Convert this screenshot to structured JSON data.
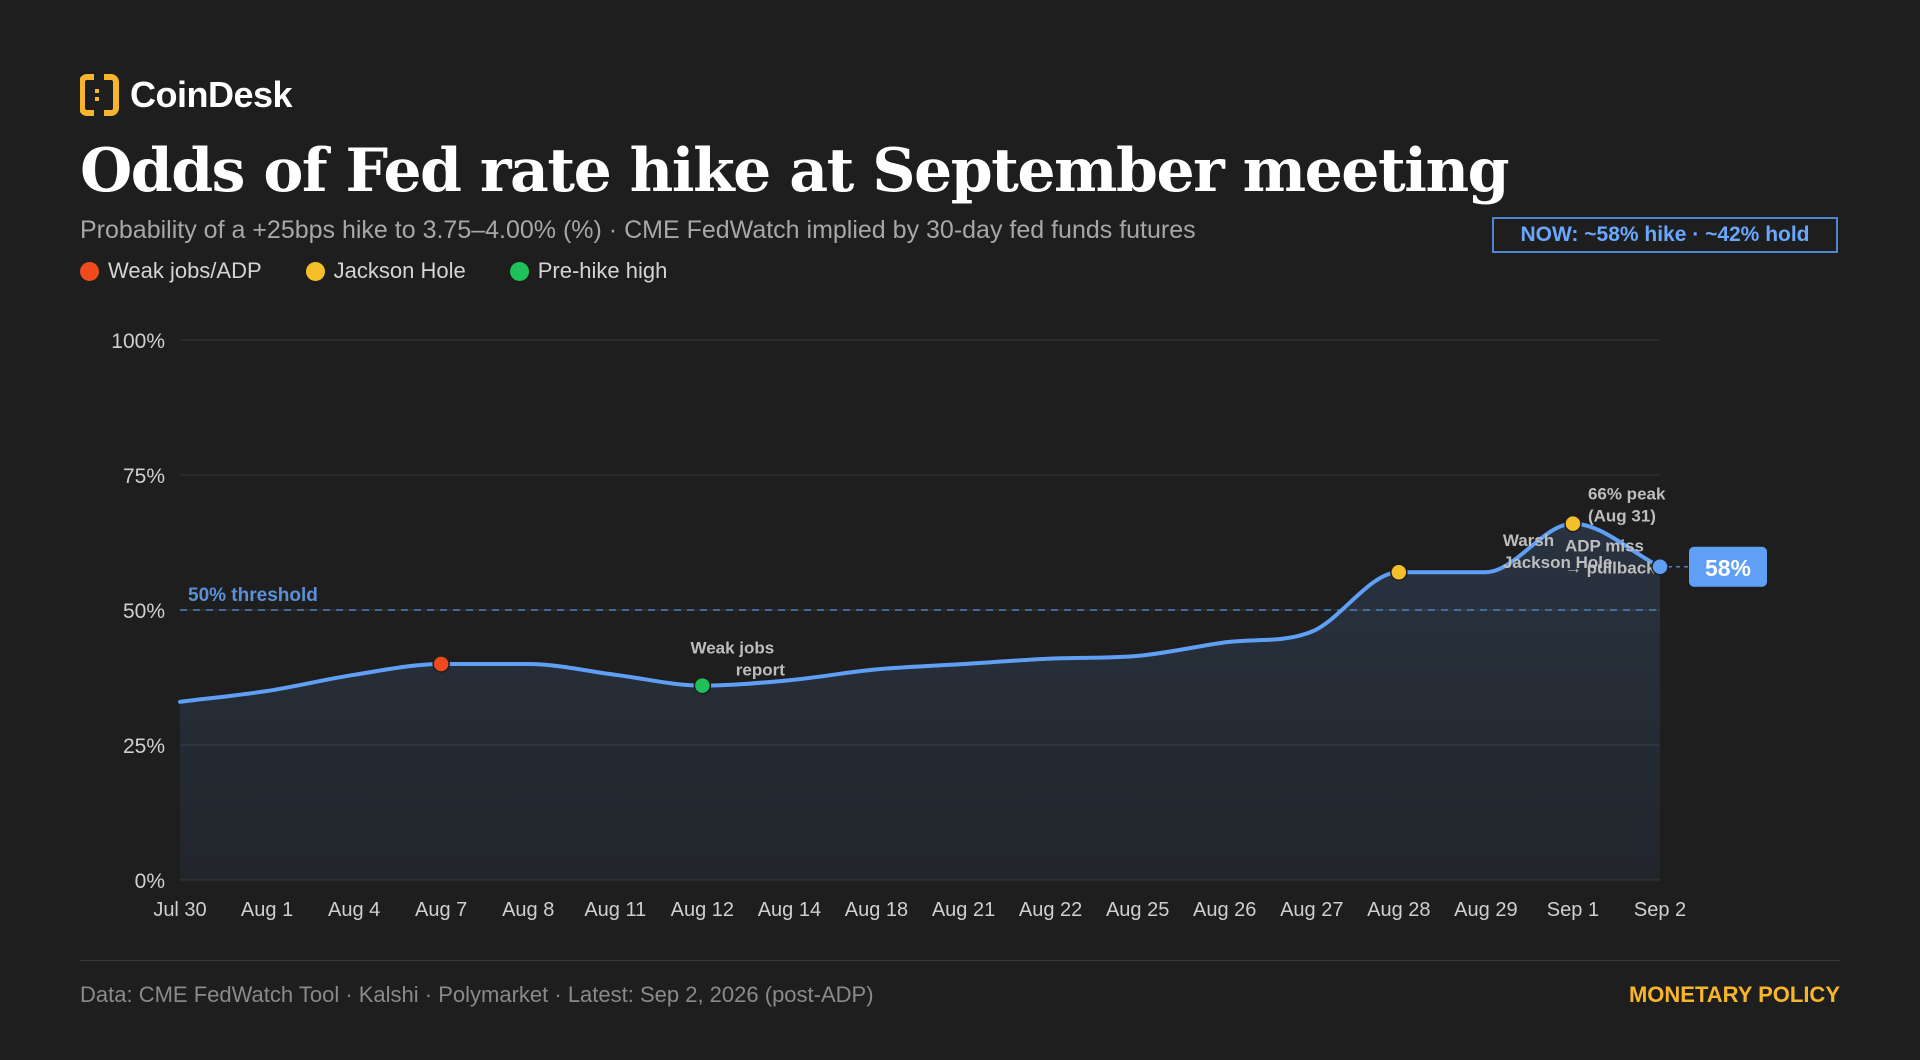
{
  "brand": {
    "name": "CoinDesk",
    "color": "#f7b52b"
  },
  "header": {
    "title": "Odds of Fed rate hike at September meeting",
    "subtitle": "Probability of a +25bps hike to 3.75–4.00% (%) · CME FedWatch implied by 30-day fed funds futures",
    "now_badge": "NOW: ~58% hike · ~42% hold"
  },
  "legend": [
    {
      "label": "Weak jobs/ADP",
      "color": "#f04a1d"
    },
    {
      "label": "Jackson Hole",
      "color": "#f5bf2a"
    },
    {
      "label": "Pre-hike high",
      "color": "#1fc25a"
    }
  ],
  "chart_data": {
    "type": "line",
    "x": [
      "Jul 30",
      "Aug 1",
      "Aug 4",
      "Aug 7",
      "Aug 8",
      "Aug 11",
      "Aug 12",
      "Aug 14",
      "Aug 18",
      "Aug 21",
      "Aug 22",
      "Aug 25",
      "Aug 26",
      "Aug 27",
      "Aug 28",
      "Aug 29",
      "Sep 1",
      "Sep 2"
    ],
    "series": [
      {
        "values": [
          33,
          35,
          38,
          40,
          40,
          38,
          36,
          37,
          39,
          40,
          41,
          41.5,
          44,
          46,
          57,
          57,
          66,
          58
        ],
        "color": "#5f9ff5"
      }
    ],
    "yticks": [
      0,
      25,
      50,
      75,
      100
    ],
    "ytick_labels": [
      "0%",
      "25%",
      "50%",
      "75%",
      "100%"
    ],
    "ylim": [
      0,
      100
    ],
    "threshold": {
      "value": 50,
      "label": "50% threshold"
    },
    "markers": [
      {
        "index": 3,
        "color": "#f04a1d"
      },
      {
        "index": 6,
        "color": "#1fc25a"
      },
      {
        "index": 14,
        "color": "#f5bf2a"
      },
      {
        "index": 16,
        "color": "#f5bf2a"
      },
      {
        "index": 17,
        "color": "#5f9ff5"
      }
    ],
    "annotations": [
      {
        "index": 6,
        "lines": [
          "Weak jobs",
          "report"
        ]
      },
      {
        "index": 14,
        "lines": [
          "Warsh",
          "Jackson Hole"
        ]
      },
      {
        "index": 16,
        "lines": [
          "66% peak",
          "(Aug 31)"
        ]
      },
      {
        "index": 16,
        "lines": [
          "ADP miss",
          "→ pullback"
        ]
      }
    ],
    "end_label": "58%",
    "grid": true
  },
  "footer": {
    "source": "Data: CME FedWatch Tool · Kalshi · Polymarket · Latest: Sep 2, 2026 (post-ADP)",
    "tag": "MONETARY POLICY"
  }
}
